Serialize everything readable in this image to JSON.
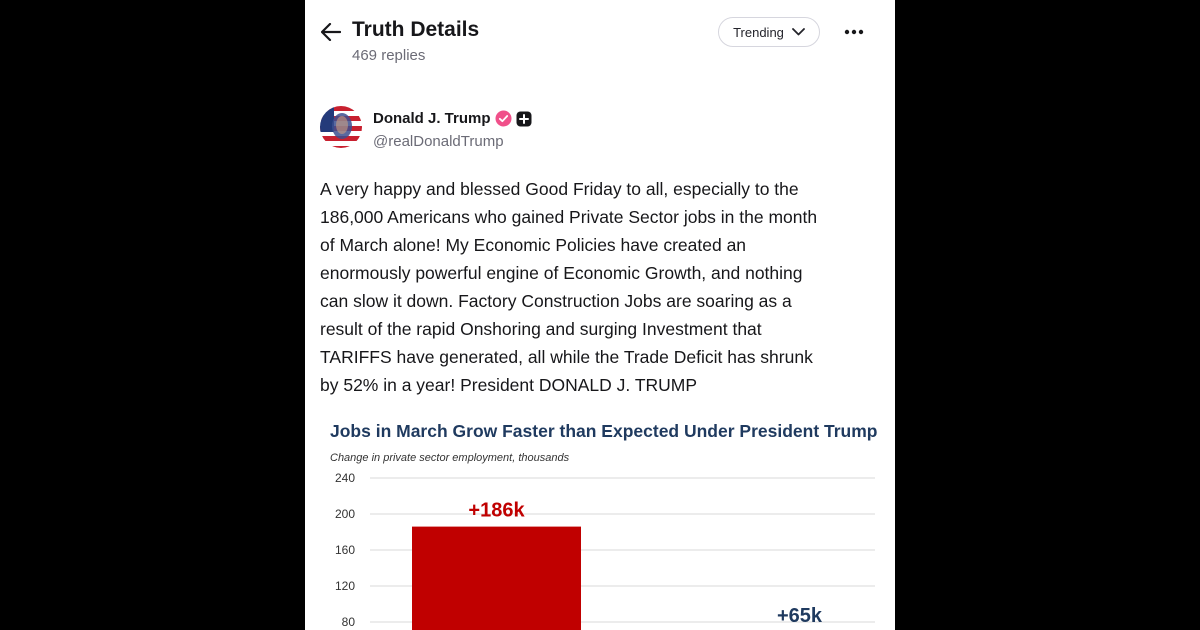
{
  "header": {
    "title": "Truth Details",
    "replies": "469 replies",
    "sort_label": "Trending",
    "icons": {
      "back": "arrow-left-icon",
      "sort": "chevron-down-icon",
      "more": "more-horizontal-icon"
    }
  },
  "post": {
    "author": {
      "name": "Donald J. Trump",
      "handle": "@realDonaldTrump",
      "badges": [
        "verified-badge-icon",
        "plus-badge-icon"
      ]
    },
    "text_lines": [
      "A very happy and blessed Good Friday to all, especially to the",
      "186,000 Americans who gained Private Sector jobs in the month",
      "of March alone! My Economic Policies have created an",
      "enormously powerful engine of Economic Growth, and nothing",
      "can slow it down. Factory Construction Jobs are soaring as a",
      "result of the rapid Onshoring and surging Investment that",
      "TARIFFS have generated, all while the Trade Deficit has shrunk",
      "by 52% in a year! President DONALD J. TRUMP"
    ]
  },
  "colors": {
    "accent_badge": "#f0508a",
    "bar_actual": "#c00000",
    "bar_expected": "#1f3a5f",
    "chart_title": "#1f3a5f"
  },
  "chart_data": {
    "type": "bar",
    "title": "Jobs in March Grow Faster than Expected Under President Trump",
    "subtitle": "Change in private sector employment,  thousands",
    "categories": [
      "",
      ""
    ],
    "values": [
      186,
      65
    ],
    "data_labels": [
      "+186k",
      "+65k"
    ],
    "ylim": [
      0,
      240
    ],
    "yticks": [
      80,
      120,
      160,
      200,
      240
    ],
    "grid": true
  }
}
